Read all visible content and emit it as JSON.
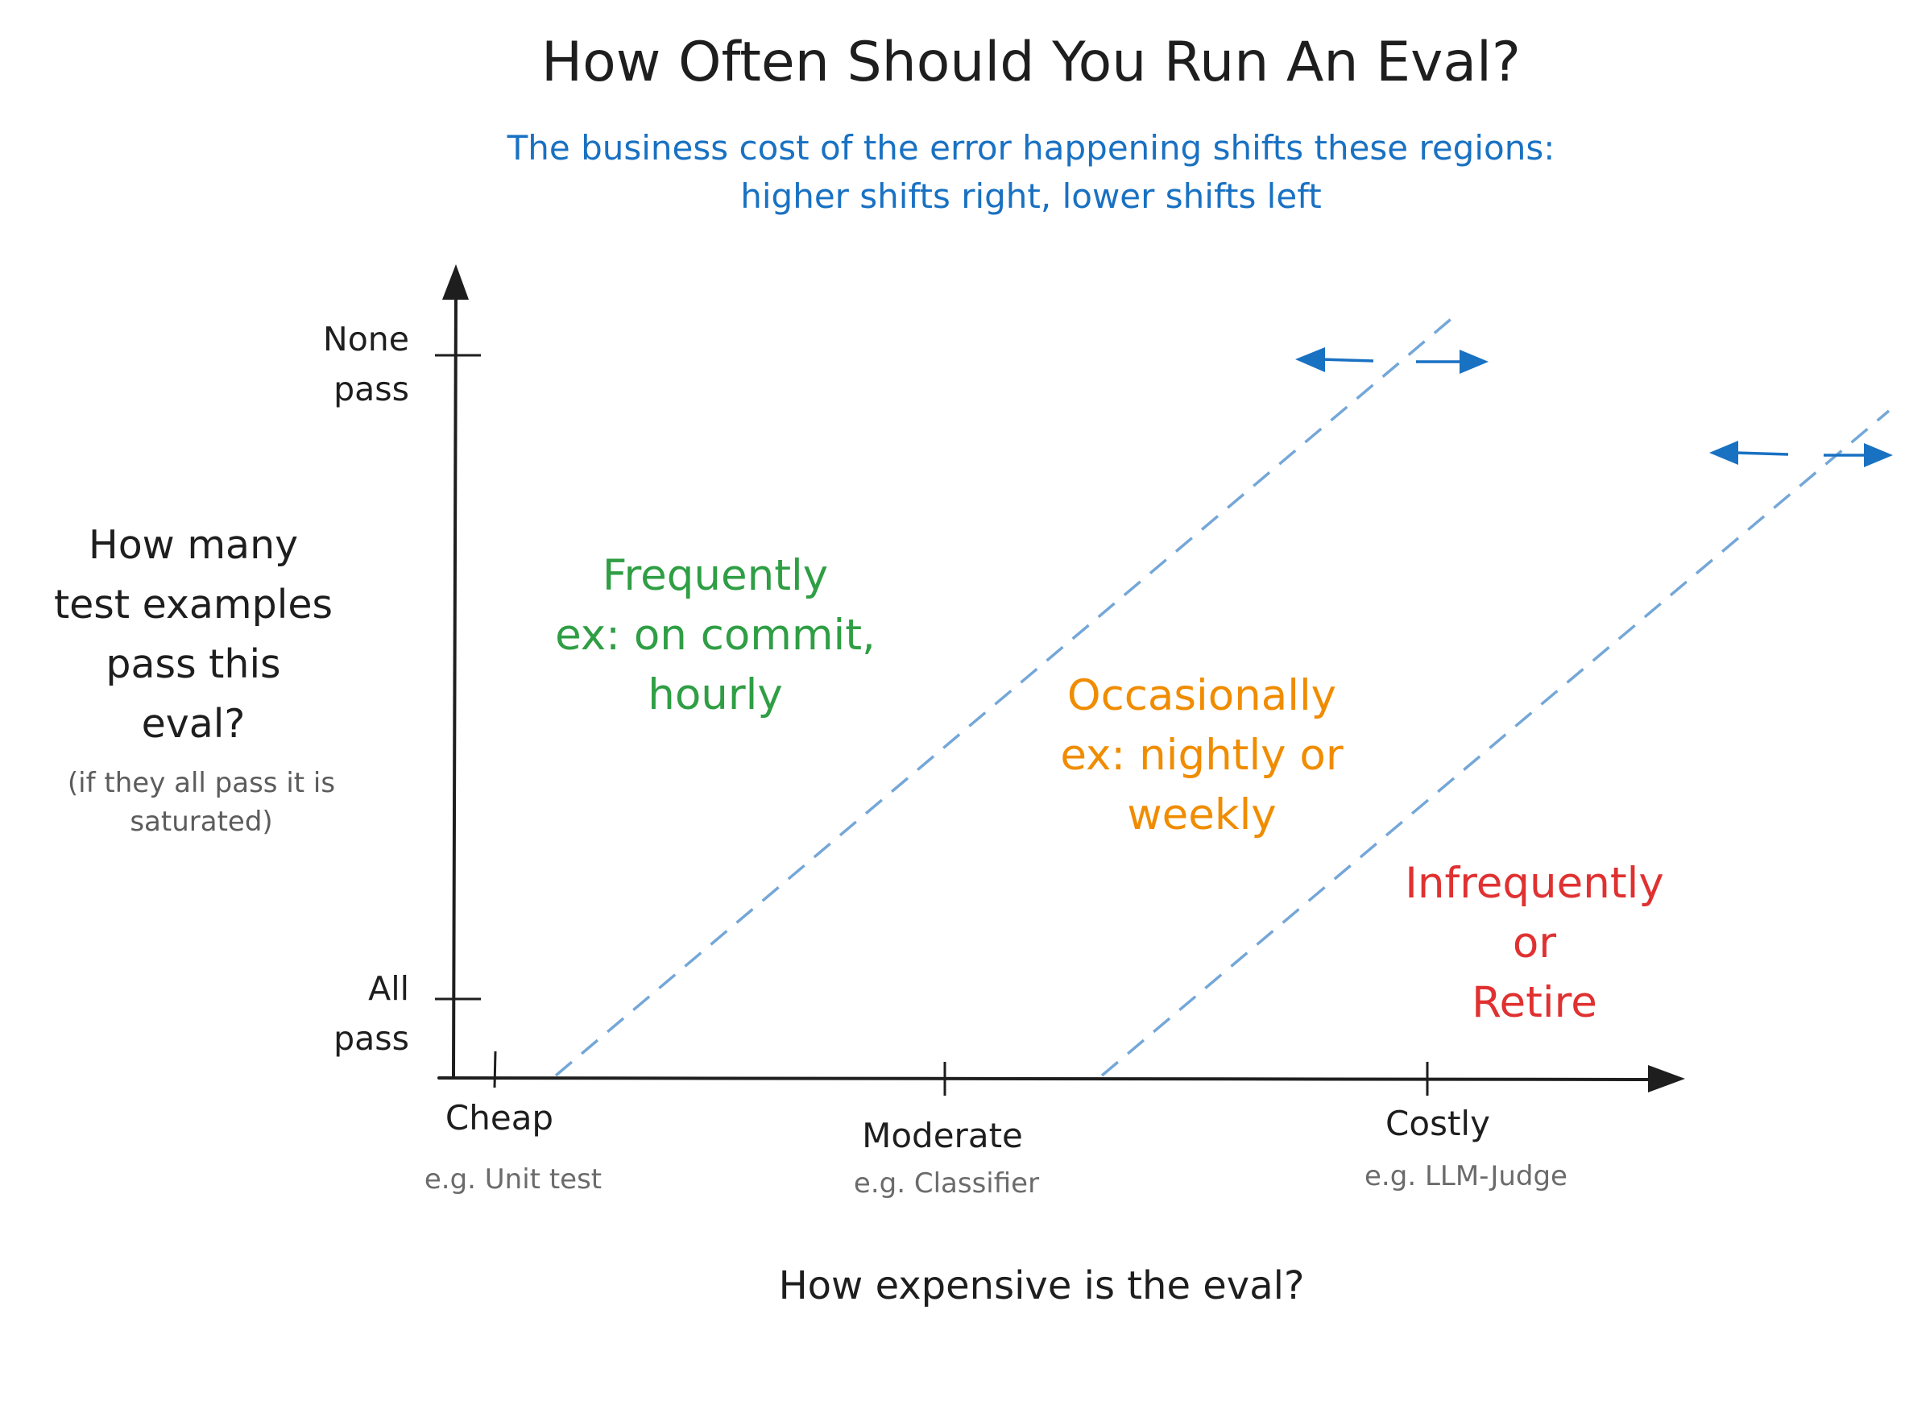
{
  "title": "How Often Should You Run An Eval?",
  "subtitle": {
    "line1": "The business cost of the error happening shifts these regions:",
    "line2": "higher shifts right, lower shifts left"
  },
  "y_axis": {
    "label_lines": [
      "How many",
      "test examples",
      "pass this",
      "eval?"
    ],
    "note_lines": [
      "(if they all pass it is",
      "saturated)"
    ],
    "tick_top": [
      "None",
      "pass"
    ],
    "tick_bottom": [
      "All",
      "pass"
    ]
  },
  "x_axis": {
    "label": "How expensive is the eval?",
    "categories": [
      {
        "name": "Cheap",
        "example": "e.g. Unit test"
      },
      {
        "name": "Moderate",
        "example": "e.g. Classifier"
      },
      {
        "name": "Costly",
        "example": "e.g. LLM-Judge"
      }
    ]
  },
  "regions": [
    {
      "lines": [
        "Frequently",
        "ex: on commit,",
        "hourly"
      ],
      "color": "#2f9e44"
    },
    {
      "lines": [
        "Occasionally",
        "ex: nightly or",
        "weekly"
      ],
      "color": "#f08c00"
    },
    {
      "lines": [
        "Infrequently",
        "or",
        "Retire"
      ],
      "color": "#e03131"
    }
  ],
  "colors": {
    "axis": "#1e1e1e",
    "boundary": "#74a7d8",
    "arrows": "#1971c2"
  }
}
